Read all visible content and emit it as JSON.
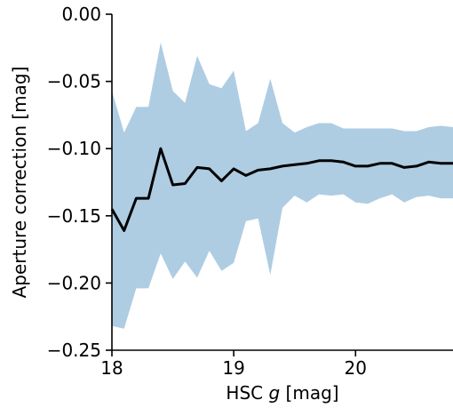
{
  "chart_data": {
    "type": "line",
    "xlabel_prefix": "HSC ",
    "xlabel_var": "g",
    "xlabel_suffix": " [mag]",
    "ylabel": "Aperture correction [mag]",
    "xlim": [
      18.0,
      20.8
    ],
    "ylim": [
      -0.25,
      0.0
    ],
    "xticks": [
      18,
      19,
      20
    ],
    "xtick_labels": [
      "18",
      "19",
      "20"
    ],
    "yticks": [
      0.0,
      -0.05,
      -0.1,
      -0.15,
      -0.2,
      -0.25
    ],
    "ytick_labels": [
      "0.00",
      "−0.05",
      "−0.10",
      "−0.15",
      "−0.20",
      "−0.25"
    ],
    "grid": false,
    "colors": {
      "line": "#000000",
      "band": "#aecde3"
    },
    "series": [
      {
        "x": [
          18.0,
          18.1,
          18.2,
          18.3,
          18.4,
          18.5,
          18.6,
          18.7,
          18.8,
          18.9,
          19.0,
          19.1,
          19.2,
          19.3,
          19.4,
          19.5,
          19.6,
          19.7,
          19.8,
          19.9,
          20.0,
          20.1,
          20.2,
          20.3,
          20.4,
          20.5,
          20.6,
          20.7,
          20.8
        ],
        "y": [
          -0.145,
          -0.161,
          -0.137,
          -0.137,
          -0.1,
          -0.127,
          -0.126,
          -0.114,
          -0.115,
          -0.124,
          -0.115,
          -0.12,
          -0.116,
          -0.115,
          -0.113,
          -0.112,
          -0.111,
          -0.109,
          -0.109,
          -0.11,
          -0.113,
          -0.113,
          -0.111,
          -0.111,
          -0.114,
          -0.113,
          -0.11,
          -0.111,
          -0.111
        ],
        "upper": [
          -0.057,
          -0.088,
          -0.069,
          -0.069,
          -0.021,
          -0.057,
          -0.066,
          -0.031,
          -0.052,
          -0.055,
          -0.042,
          -0.087,
          -0.081,
          -0.048,
          -0.081,
          -0.088,
          -0.084,
          -0.081,
          -0.081,
          -0.085,
          -0.085,
          -0.085,
          -0.085,
          -0.085,
          -0.087,
          -0.087,
          -0.084,
          -0.083,
          -0.084
        ],
        "lower": [
          -0.232,
          -0.234,
          -0.204,
          -0.204,
          -0.178,
          -0.197,
          -0.184,
          -0.196,
          -0.176,
          -0.191,
          -0.185,
          -0.154,
          -0.152,
          -0.194,
          -0.144,
          -0.135,
          -0.14,
          -0.134,
          -0.135,
          -0.134,
          -0.14,
          -0.141,
          -0.137,
          -0.134,
          -0.14,
          -0.136,
          -0.135,
          -0.137,
          -0.137
        ]
      }
    ]
  }
}
